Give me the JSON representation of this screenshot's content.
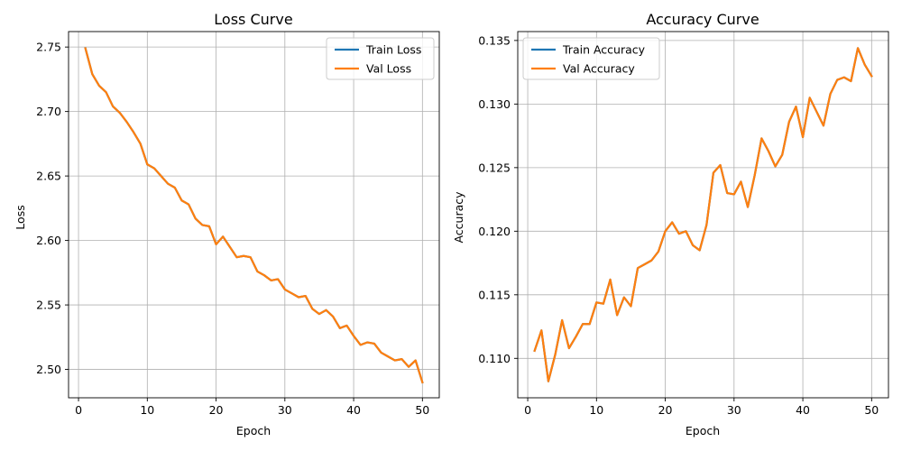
{
  "chart_data": [
    {
      "type": "line",
      "title": "Loss Curve",
      "xlabel": "Epoch",
      "ylabel": "Loss",
      "xlim": [
        -1.45,
        52.45
      ],
      "ylim": [
        2.478,
        2.762
      ],
      "xticks": [
        0,
        10,
        20,
        30,
        40,
        50
      ],
      "xtick_labels": [
        "0",
        "10",
        "20",
        "30",
        "40",
        "50"
      ],
      "yticks": [
        2.5,
        2.55,
        2.6,
        2.65,
        2.7,
        2.75
      ],
      "ytick_labels": [
        "2.50",
        "2.55",
        "2.60",
        "2.65",
        "2.70",
        "2.75"
      ],
      "grid": true,
      "legend_position": "top-right",
      "x": [
        1,
        2,
        3,
        4,
        5,
        6,
        7,
        8,
        9,
        10,
        11,
        12,
        13,
        14,
        15,
        16,
        17,
        18,
        19,
        20,
        21,
        22,
        23,
        24,
        25,
        26,
        27,
        28,
        29,
        30,
        31,
        32,
        33,
        34,
        35,
        36,
        37,
        38,
        39,
        40,
        41,
        42,
        43,
        44,
        45,
        46,
        47,
        48,
        49,
        50
      ],
      "series": [
        {
          "name": "Train Loss",
          "color": "#1f77b4",
          "values": [
            2.749,
            2.729,
            2.72,
            2.715,
            2.704,
            2.699,
            2.692,
            2.684,
            2.675,
            2.659,
            2.656,
            2.65,
            2.644,
            2.641,
            2.631,
            2.628,
            2.617,
            2.612,
            2.611,
            2.597,
            2.603,
            2.595,
            2.587,
            2.588,
            2.587,
            2.576,
            2.573,
            2.569,
            2.57,
            2.562,
            2.559,
            2.556,
            2.557,
            2.547,
            2.543,
            2.546,
            2.541,
            2.532,
            2.534,
            2.526,
            2.519,
            2.521,
            2.52,
            2.513,
            2.51,
            2.507,
            2.508,
            2.502,
            2.507,
            2.49
          ]
        },
        {
          "name": "Val Loss",
          "color": "#ff7f0e",
          "values": [
            2.749,
            2.729,
            2.72,
            2.715,
            2.704,
            2.699,
            2.692,
            2.684,
            2.675,
            2.659,
            2.656,
            2.65,
            2.644,
            2.641,
            2.631,
            2.628,
            2.617,
            2.612,
            2.611,
            2.597,
            2.603,
            2.595,
            2.587,
            2.588,
            2.587,
            2.576,
            2.573,
            2.569,
            2.57,
            2.562,
            2.559,
            2.556,
            2.557,
            2.547,
            2.543,
            2.546,
            2.541,
            2.532,
            2.534,
            2.526,
            2.519,
            2.521,
            2.52,
            2.513,
            2.51,
            2.507,
            2.508,
            2.502,
            2.507,
            2.49
          ]
        }
      ]
    },
    {
      "type": "line",
      "title": "Accuracy Curve",
      "xlabel": "Epoch",
      "ylabel": "Accuracy",
      "xlim": [
        -1.45,
        52.45
      ],
      "ylim": [
        0.1069,
        0.1357
      ],
      "xticks": [
        0,
        10,
        20,
        30,
        40,
        50
      ],
      "xtick_labels": [
        "0",
        "10",
        "20",
        "30",
        "40",
        "50"
      ],
      "yticks": [
        0.11,
        0.115,
        0.12,
        0.125,
        0.13,
        0.135
      ],
      "ytick_labels": [
        "0.110",
        "0.115",
        "0.120",
        "0.125",
        "0.130",
        "0.135"
      ],
      "grid": true,
      "legend_position": "top-left",
      "x": [
        1,
        2,
        3,
        4,
        5,
        6,
        7,
        8,
        9,
        10,
        11,
        12,
        13,
        14,
        15,
        16,
        17,
        18,
        19,
        20,
        21,
        22,
        23,
        24,
        25,
        26,
        27,
        28,
        29,
        30,
        31,
        32,
        33,
        34,
        35,
        36,
        37,
        38,
        39,
        40,
        41,
        42,
        43,
        44,
        45,
        46,
        47,
        48,
        49,
        50
      ],
      "series": [
        {
          "name": "Train Accuracy",
          "color": "#1f77b4",
          "values": [
            0.1106,
            0.1122,
            0.1082,
            0.1103,
            0.113,
            0.1108,
            0.1117,
            0.1127,
            0.1127,
            0.1144,
            0.1143,
            0.1162,
            0.1134,
            0.1148,
            0.1141,
            0.1171,
            0.1174,
            0.1177,
            0.1184,
            0.12,
            0.1207,
            0.1198,
            0.12,
            0.1189,
            0.1185,
            0.1205,
            0.1246,
            0.1252,
            0.123,
            0.1229,
            0.1239,
            0.1219,
            0.1244,
            0.1273,
            0.1263,
            0.1251,
            0.126,
            0.1286,
            0.1298,
            0.1274,
            0.1305,
            0.1294,
            0.1283,
            0.1308,
            0.1319,
            0.1321,
            0.1318,
            0.1344,
            0.1331,
            0.1322
          ]
        },
        {
          "name": "Val Accuracy",
          "color": "#ff7f0e",
          "values": [
            0.1106,
            0.1122,
            0.1082,
            0.1103,
            0.113,
            0.1108,
            0.1117,
            0.1127,
            0.1127,
            0.1144,
            0.1143,
            0.1162,
            0.1134,
            0.1148,
            0.1141,
            0.1171,
            0.1174,
            0.1177,
            0.1184,
            0.12,
            0.1207,
            0.1198,
            0.12,
            0.1189,
            0.1185,
            0.1205,
            0.1246,
            0.1252,
            0.123,
            0.1229,
            0.1239,
            0.1219,
            0.1244,
            0.1273,
            0.1263,
            0.1251,
            0.126,
            0.1286,
            0.1298,
            0.1274,
            0.1305,
            0.1294,
            0.1283,
            0.1308,
            0.1319,
            0.1321,
            0.1318,
            0.1344,
            0.1331,
            0.1322
          ]
        }
      ]
    }
  ]
}
